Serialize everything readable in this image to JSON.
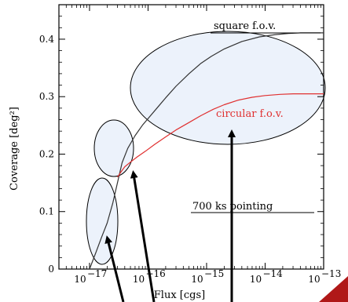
{
  "chart_data": {
    "type": "line",
    "xlabel": "Flux [cgs]",
    "ylabel": "Coverage [deg²]",
    "xscale": "log",
    "xlim": [
      3e-18,
      1e-13
    ],
    "ylim": [
      0,
      0.46
    ],
    "x_ticks": [
      {
        "value": 1e-17,
        "base": "10",
        "exp": "−17"
      },
      {
        "value": 1e-16,
        "base": "10",
        "exp": "−16"
      },
      {
        "value": 1e-15,
        "base": "10",
        "exp": "−15"
      },
      {
        "value": 1e-14,
        "base": "10",
        "exp": "−14"
      },
      {
        "value": 1e-13,
        "base": "10",
        "exp": "−13"
      }
    ],
    "y_ticks": [
      {
        "value": 0,
        "label": "0"
      },
      {
        "value": 0.1,
        "label": "0.1"
      },
      {
        "value": 0.2,
        "label": "0.2"
      },
      {
        "value": 0.3,
        "label": "0.3"
      },
      {
        "value": 0.4,
        "label": "0.4"
      }
    ],
    "series": [
      {
        "name": "square f.o.v.",
        "color": "#333333",
        "x": [
          1e-17,
          1.3e-17,
          1.6e-17,
          2e-17,
          2.5e-17,
          3e-17,
          3.6e-17,
          4.5e-17,
          6e-17,
          8e-17,
          1e-16,
          1.5e-16,
          2e-16,
          3e-16,
          5e-16,
          8e-16,
          1.2e-15,
          2e-15,
          4e-15,
          8e-15,
          1.5e-14,
          2.5e-14,
          4e-14,
          7e-14,
          1e-13
        ],
        "y": [
          0.0,
          0.03,
          0.055,
          0.08,
          0.115,
          0.15,
          0.185,
          0.21,
          0.232,
          0.25,
          0.262,
          0.283,
          0.298,
          0.318,
          0.34,
          0.358,
          0.37,
          0.383,
          0.396,
          0.404,
          0.408,
          0.41,
          0.411,
          0.411,
          0.411
        ]
      },
      {
        "name": "circular f.o.v.",
        "color": "#e03030",
        "x": [
          3e-17,
          3.5e-17,
          4e-17,
          5e-17,
          6.5e-17,
          9e-17,
          1.3e-16,
          2e-16,
          3e-16,
          5e-16,
          8e-16,
          1.3e-15,
          2e-15,
          3.5e-15,
          6e-15,
          1e-14,
          1.8e-14,
          3e-14,
          5e-14,
          1e-13
        ],
        "y": [
          0.16,
          0.17,
          0.178,
          0.186,
          0.195,
          0.205,
          0.217,
          0.23,
          0.242,
          0.255,
          0.267,
          0.278,
          0.286,
          0.294,
          0.299,
          0.302,
          0.304,
          0.305,
          0.305,
          0.305
        ]
      }
    ],
    "annotations": {
      "square_label": "square f.o.v.",
      "circular_label": "circular f.o.v.",
      "pointing_label": "700 ks pointing"
    }
  }
}
